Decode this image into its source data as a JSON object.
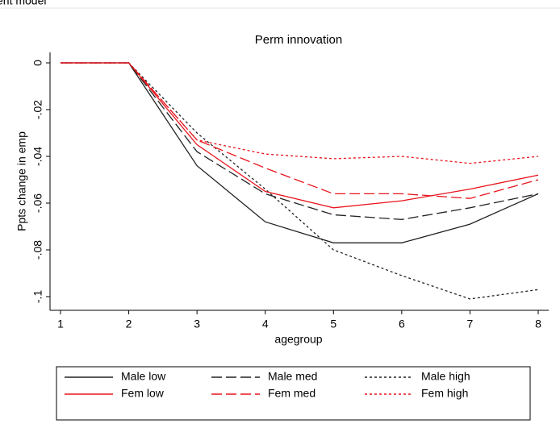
{
  "header": "ent model",
  "chart_data": {
    "type": "line",
    "title": "Perm innovation",
    "x_label": "agegroup",
    "y_label": "Ppts change in emp",
    "x": [
      1,
      2,
      3,
      4,
      5,
      6,
      7,
      8
    ],
    "xlim": [
      1,
      8
    ],
    "xticks": [
      1,
      2,
      3,
      4,
      5,
      6,
      7,
      8
    ],
    "ylim": [
      -0.1,
      0
    ],
    "yticks": [
      0,
      {
        "value": -0.02,
        "label": "-.02"
      },
      {
        "value": -0.04,
        "label": "-.04"
      },
      {
        "value": -0.06,
        "label": "-.06"
      },
      {
        "value": -0.08,
        "label": "-.08"
      },
      {
        "value": -0.1,
        "label": "-.1"
      }
    ],
    "series": [
      {
        "name": "Male low",
        "color": "#222222",
        "dash": "solid",
        "values": [
          0,
          0,
          -0.044,
          -0.068,
          -0.077,
          -0.077,
          -0.069,
          -0.056
        ]
      },
      {
        "name": "Male med",
        "color": "#222222",
        "dash": "long",
        "values": [
          0,
          0,
          -0.038,
          -0.056,
          -0.065,
          -0.067,
          -0.062,
          -0.056
        ]
      },
      {
        "name": "Male high",
        "color": "#222222",
        "dash": "short",
        "values": [
          0,
          0,
          -0.03,
          -0.054,
          -0.08,
          -0.091,
          -0.101,
          -0.097
        ]
      },
      {
        "name": "Fem low",
        "color": "#e8141c",
        "dash": "solid",
        "values": [
          0,
          0,
          -0.035,
          -0.055,
          -0.062,
          -0.059,
          -0.054,
          -0.048
        ]
      },
      {
        "name": "Fem med",
        "color": "#e8141c",
        "dash": "long",
        "values": [
          0,
          0,
          -0.033,
          -0.045,
          -0.056,
          -0.056,
          -0.058,
          -0.05
        ]
      },
      {
        "name": "Fem high",
        "color": "#e8141c",
        "dash": "short",
        "values": [
          0,
          0,
          -0.033,
          -0.039,
          -0.041,
          -0.04,
          -0.043,
          -0.04
        ]
      }
    ]
  }
}
